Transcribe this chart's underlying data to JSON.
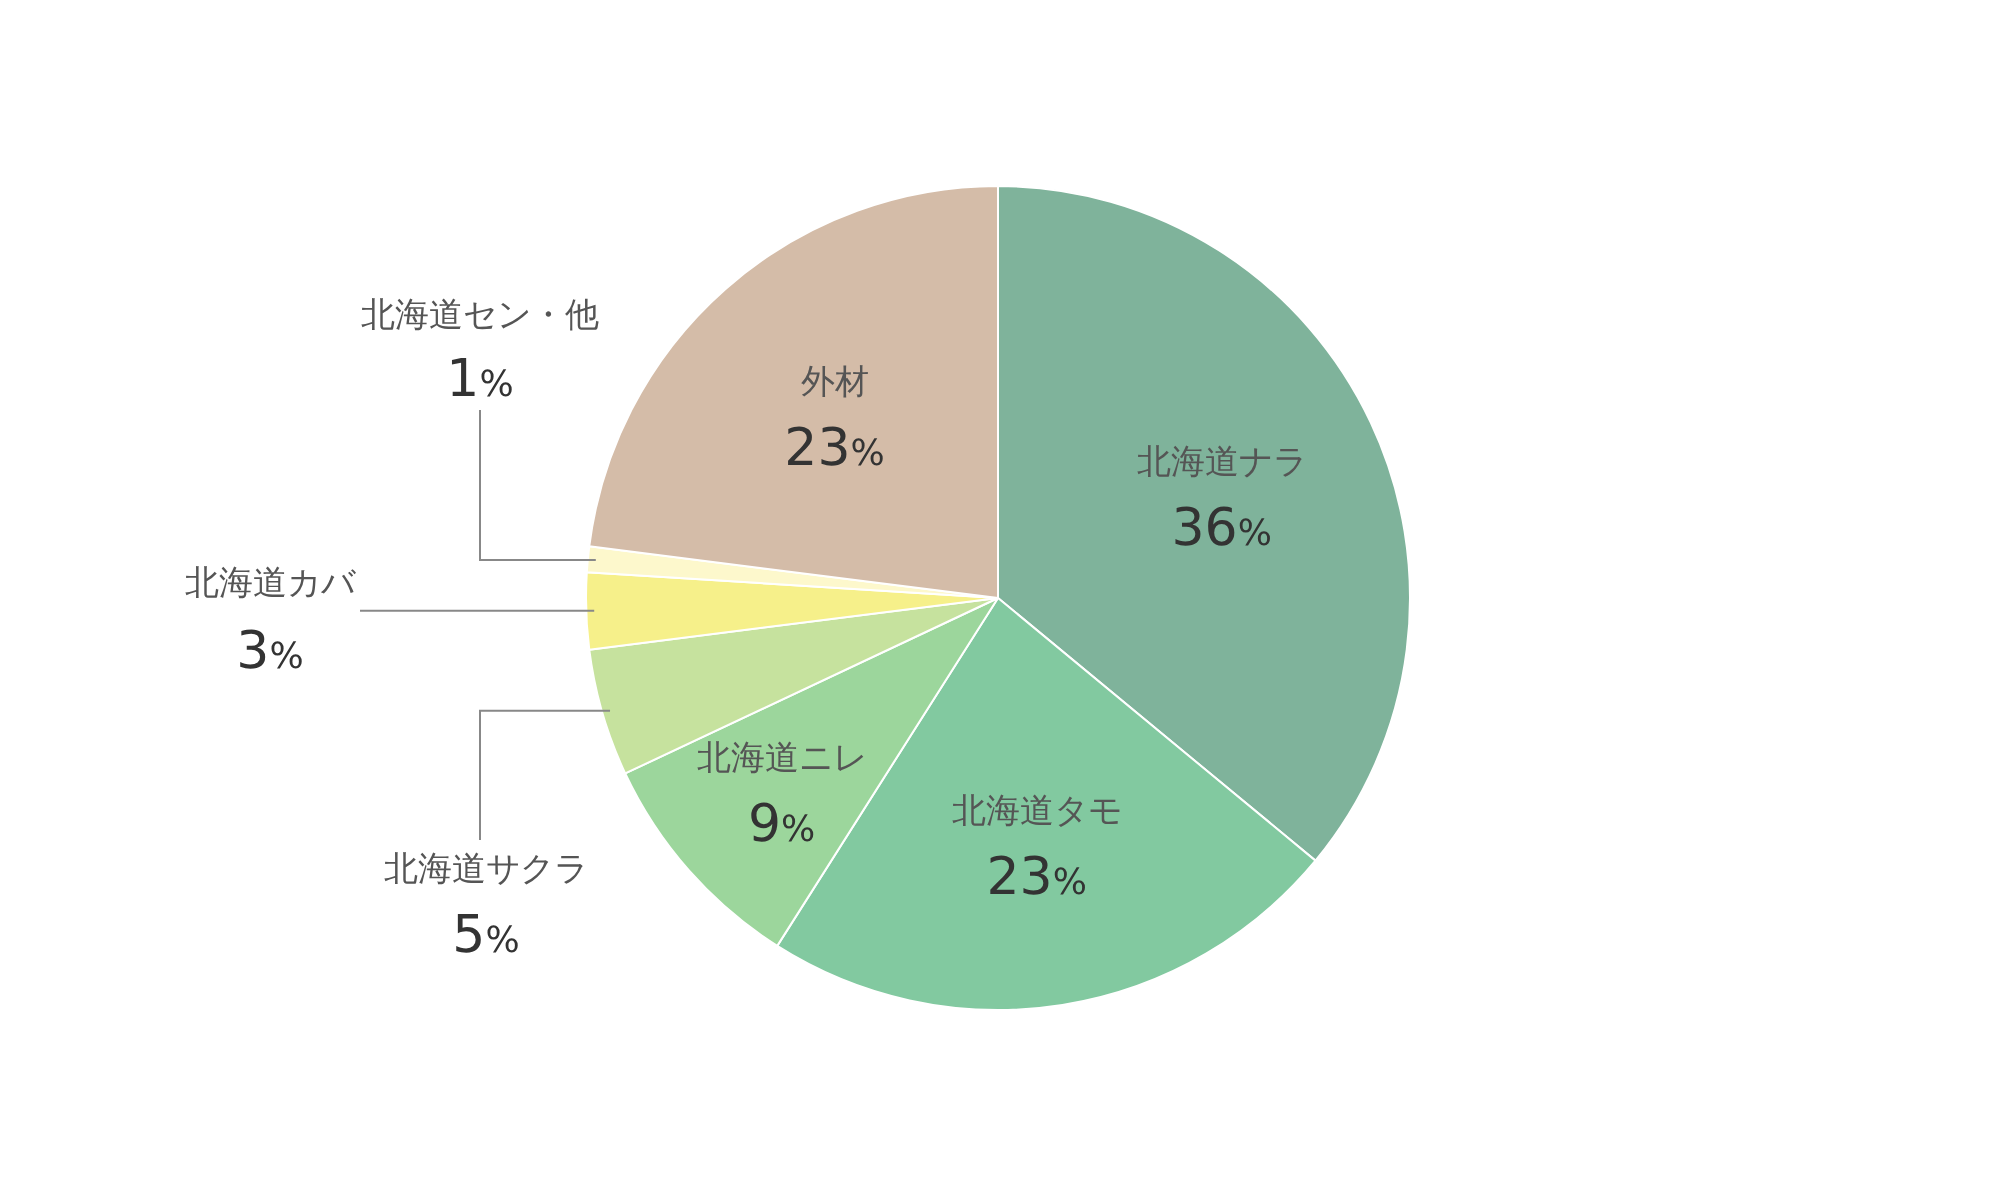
{
  "chart_data": {
    "type": "pie",
    "categories": [
      "北海道ナラ",
      "北海道タモ",
      "北海道ニレ",
      "北海道サクラ",
      "北海道カバ",
      "北海道セン・他",
      "外材"
    ],
    "values": [
      36,
      23,
      9,
      5,
      3,
      1,
      23
    ],
    "colors": [
      "#7fb39b",
      "#82c9a0",
      "#9cd69c",
      "#c6e29e",
      "#f6f08a",
      "#fdf8cc",
      "#d4bca8"
    ],
    "value_labels": [
      "36%",
      "23%",
      "9%",
      "5%",
      "3%",
      "1%",
      "23%"
    ]
  }
}
